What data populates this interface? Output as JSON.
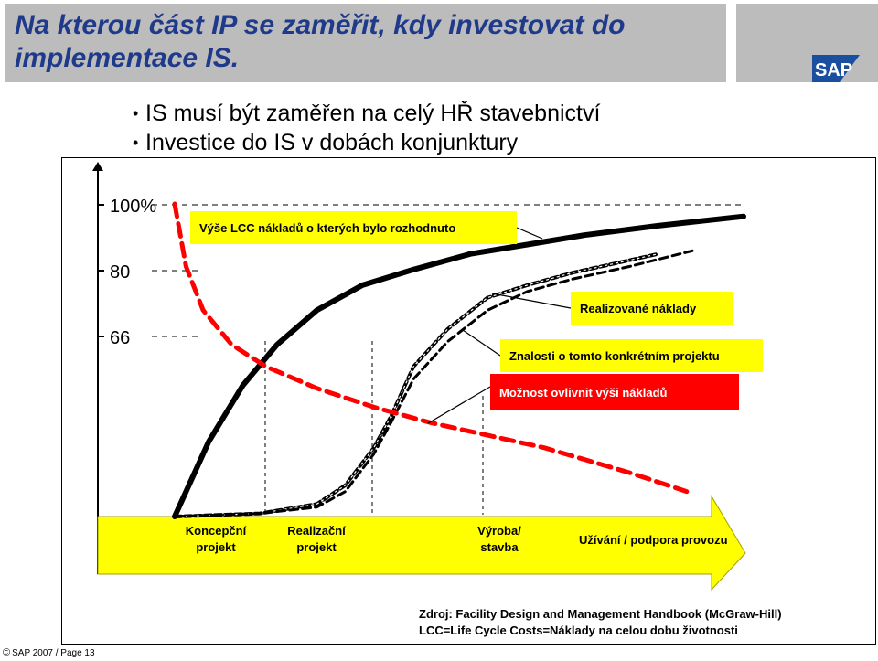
{
  "header": {
    "title": "Na kterou část IP se zaměřit, kdy investovat do implementace IS.",
    "logo_text": "SAP"
  },
  "bullets": [
    "IS musí být zaměřen na celý HŘ stavebnictví",
    "Investice do IS v dobách konjunktury"
  ],
  "chart_data": {
    "type": "line",
    "y_ticks": [
      "100%",
      "80",
      "66"
    ],
    "y_tick_values": [
      100,
      80,
      66
    ],
    "ylim": [
      0,
      110
    ],
    "x_range": [
      0,
      100
    ],
    "series": [
      {
        "label": "Výše LCC nákladů o kterých bylo rozhodnuto",
        "style": "solid-black-thick",
        "x": [
          0,
          6,
          12,
          18,
          25,
          33,
          42,
          52,
          62,
          72,
          85,
          100
        ],
        "y": [
          0,
          24,
          42,
          55,
          66,
          74,
          79,
          84,
          87,
          90,
          93,
          96
        ]
      },
      {
        "label": "Realizované náklady",
        "style": "dashed-black-double",
        "x": [
          0,
          15,
          25,
          30,
          35,
          38,
          42,
          48,
          55,
          62,
          70,
          80,
          85
        ],
        "y": [
          0,
          1,
          4,
          10,
          22,
          32,
          48,
          60,
          70,
          74,
          78,
          82,
          84
        ]
      },
      {
        "label": "Znalosti o tomto konkrétním projektu",
        "style": "dashed-black",
        "x": [
          0,
          15,
          25,
          30,
          35,
          38,
          42,
          48,
          55,
          62,
          70,
          80,
          91
        ],
        "y": [
          0,
          1,
          3,
          8,
          20,
          30,
          44,
          56,
          66,
          72,
          76,
          80,
          85
        ]
      },
      {
        "label": "Možnost ovlivnit výši nákladů",
        "style": "dashed-red",
        "x": [
          0,
          2,
          5,
          10,
          16,
          25,
          35,
          45,
          55,
          65,
          80,
          90
        ],
        "y": [
          100,
          80,
          66,
          55,
          48,
          41,
          35,
          30,
          26,
          22,
          14,
          8
        ]
      }
    ],
    "phases": [
      "Koncepční projekt",
      "Realizační projekt",
      "Výroba/ stavba",
      "Užívání / podpora provozu"
    ],
    "phase_lines_x": [
      15,
      32
    ],
    "source": [
      "Zdroj: Facility Design and Management Handbook (McGraw-Hill)",
      "LCC=Life Cycle Costs=Náklady na celou dobu životnosti"
    ],
    "colors": {
      "yellow": "#ffff00",
      "red": "#ff0000",
      "axis": "#000000",
      "gray_bg": "#bcbcbc",
      "title": "#1f3a8a"
    }
  },
  "footer": {
    "copyright_icon": "©",
    "text": "SAP 2007 / Page 13"
  }
}
